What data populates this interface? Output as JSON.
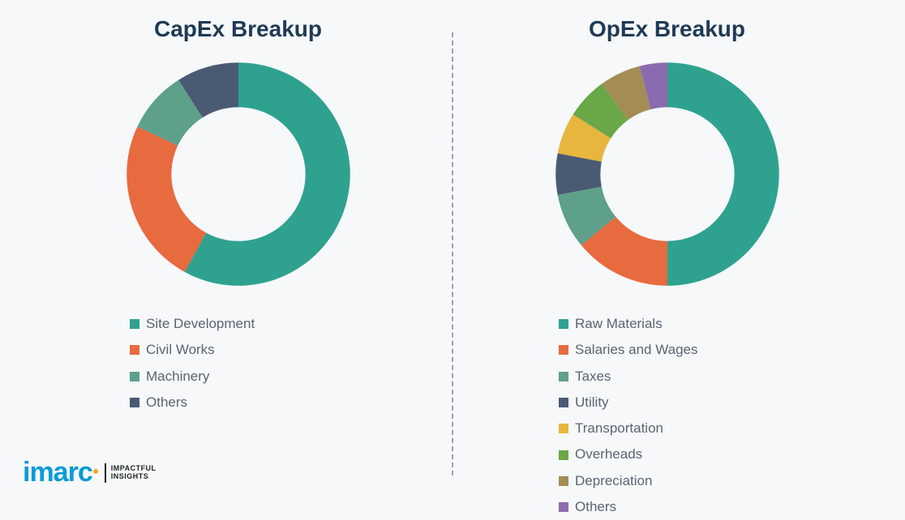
{
  "background_color": "#f5f8fa",
  "divider_color": "#9aa3ad",
  "title_color": "#1f3a54",
  "legend_text_color": "#5a6470",
  "legend_fontsize": 17,
  "title_fontsize": 28,
  "charts": {
    "capex": {
      "title": "CapEx Breakup",
      "type": "donut",
      "inner_radius": 0.6,
      "outer_radius": 1.0,
      "start_angle_deg": 90,
      "gap_deg": 0,
      "segments": [
        {
          "label": "Site Development",
          "value": 58,
          "color": "#2ea28f"
        },
        {
          "label": "Civil Works",
          "value": 24,
          "color": "#e86a3f"
        },
        {
          "label": "Machinery",
          "value": 9,
          "color": "#5ea08a"
        },
        {
          "label": "Others",
          "value": 9,
          "color": "#4a5a73"
        }
      ]
    },
    "opex": {
      "title": "OpEx Breakup",
      "type": "donut",
      "inner_radius": 0.6,
      "outer_radius": 1.0,
      "start_angle_deg": 90,
      "gap_deg": 0,
      "segments": [
        {
          "label": "Raw Materials",
          "value": 50,
          "color": "#2ea28f"
        },
        {
          "label": "Salaries and Wages",
          "value": 14,
          "color": "#e86a3f"
        },
        {
          "label": "Taxes",
          "value": 8,
          "color": "#5ea08a"
        },
        {
          "label": "Utility",
          "value": 6,
          "color": "#4a5a73"
        },
        {
          "label": "Transportation",
          "value": 6,
          "color": "#e8b53e"
        },
        {
          "label": "Overheads",
          "value": 6,
          "color": "#6aa747"
        },
        {
          "label": "Depreciation",
          "value": 6,
          "color": "#a38d55"
        },
        {
          "label": "Others",
          "value": 4,
          "color": "#8b6bb0"
        }
      ]
    }
  },
  "logo": {
    "brand": "imarc",
    "tagline_line1": "IMPACTFUL",
    "tagline_line2": "INSIGHTS",
    "brand_color": "#0a9bd6",
    "dot_color": "#f5a623"
  }
}
